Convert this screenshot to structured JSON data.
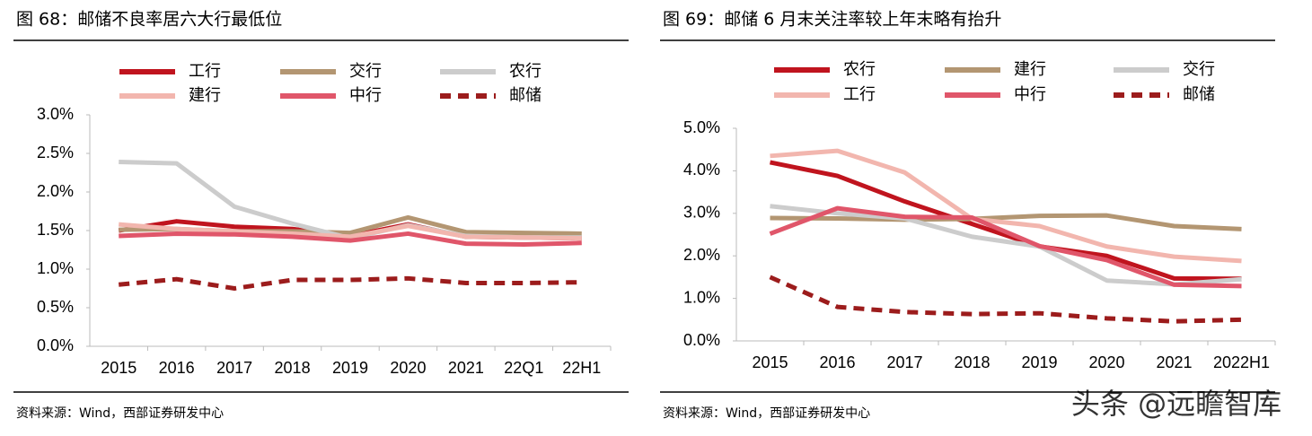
{
  "chart_data": [
    {
      "type": "line",
      "title": "图 68：邮储不良率居六大行最低位",
      "source": "资料来源：Wind，西部证券研发中心",
      "categories": [
        "2015",
        "2016",
        "2017",
        "2018",
        "2019",
        "2020",
        "2021",
        "22Q1",
        "22H1"
      ],
      "ylim": [
        0,
        3
      ],
      "yticks": [
        {
          "value": 0,
          "label": "0.0%"
        },
        {
          "value": 0.5,
          "label": "0.5%"
        },
        {
          "value": 1,
          "label": "1.0%"
        },
        {
          "value": 1.5,
          "label": "1.5%"
        },
        {
          "value": 2,
          "label": "2.0%"
        },
        {
          "value": 2.5,
          "label": "2.5%"
        },
        {
          "value": 3,
          "label": "3.0%"
        }
      ],
      "series": [
        {
          "name": "工行",
          "color": "#c0141e",
          "style": "solid",
          "values": [
            1.5,
            1.62,
            1.55,
            1.52,
            1.43,
            1.58,
            1.42,
            1.41,
            1.4
          ]
        },
        {
          "name": "交行",
          "color": "#b39672",
          "style": "solid",
          "values": [
            1.51,
            1.52,
            1.49,
            1.49,
            1.47,
            1.67,
            1.48,
            1.47,
            1.46
          ]
        },
        {
          "name": "农行",
          "color": "#cccccc",
          "style": "solid",
          "values": [
            2.39,
            2.37,
            1.81,
            1.59,
            1.4,
            1.57,
            1.43,
            1.41,
            1.41
          ]
        },
        {
          "name": "建行",
          "color": "#f2b6ae",
          "style": "solid",
          "values": [
            1.58,
            1.52,
            1.49,
            1.46,
            1.42,
            1.56,
            1.42,
            1.41,
            1.4
          ]
        },
        {
          "name": "中行",
          "color": "#e0566a",
          "style": "solid",
          "values": [
            1.43,
            1.46,
            1.45,
            1.42,
            1.37,
            1.46,
            1.33,
            1.32,
            1.34
          ]
        },
        {
          "name": "邮储",
          "color": "#9c1c1c",
          "style": "dashed",
          "values": [
            0.8,
            0.87,
            0.75,
            0.86,
            0.86,
            0.88,
            0.82,
            0.82,
            0.83
          ]
        }
      ]
    },
    {
      "type": "line",
      "title": "图 69：邮储 6 月末关注率较上年末略有抬升",
      "source": "资料来源：Wind，西部证券研发中心",
      "categories": [
        "2015",
        "2016",
        "2017",
        "2018",
        "2019",
        "2020",
        "2021",
        "2022H1"
      ],
      "ylim": [
        0,
        5
      ],
      "yticks": [
        {
          "value": 0,
          "label": "0.0%"
        },
        {
          "value": 1,
          "label": "1.0%"
        },
        {
          "value": 2,
          "label": "2.0%"
        },
        {
          "value": 3,
          "label": "3.0%"
        },
        {
          "value": 4,
          "label": "4.0%"
        },
        {
          "value": 5,
          "label": "5.0%"
        }
      ],
      "series": [
        {
          "name": "农行",
          "color": "#c0141e",
          "style": "solid",
          "values": [
            4.2,
            3.88,
            3.28,
            2.75,
            2.22,
            2.0,
            1.47,
            1.46
          ]
        },
        {
          "name": "建行",
          "color": "#b39672",
          "style": "solid",
          "values": [
            2.89,
            2.88,
            2.85,
            2.87,
            2.94,
            2.95,
            2.7,
            2.63
          ]
        },
        {
          "name": "交行",
          "color": "#cccccc",
          "style": "solid",
          "values": [
            3.17,
            3.0,
            2.88,
            2.45,
            2.22,
            1.42,
            1.33,
            1.45
          ]
        },
        {
          "name": "工行",
          "color": "#f2b6ae",
          "style": "solid",
          "values": [
            4.35,
            4.47,
            3.96,
            2.87,
            2.7,
            2.22,
            1.98,
            1.88
          ]
        },
        {
          "name": "中行",
          "color": "#e0566a",
          "style": "solid",
          "values": [
            2.52,
            3.12,
            2.92,
            2.9,
            2.23,
            1.9,
            1.32,
            1.29
          ]
        },
        {
          "name": "邮储",
          "color": "#9c1c1c",
          "style": "dashed",
          "values": [
            1.5,
            0.8,
            0.68,
            0.63,
            0.65,
            0.53,
            0.46,
            0.5
          ]
        }
      ]
    }
  ],
  "watermark": "头条 @远瞻智库"
}
